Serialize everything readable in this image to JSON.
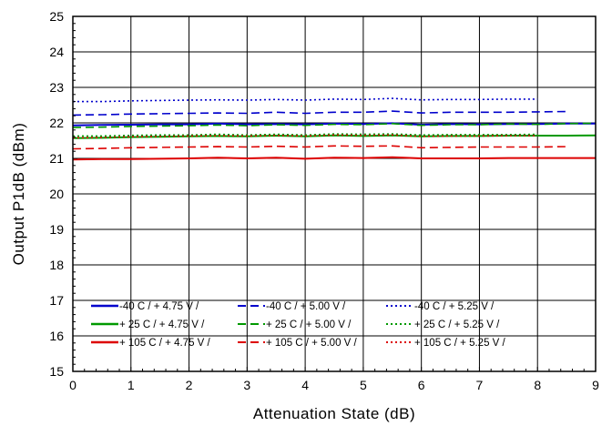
{
  "chart_data": {
    "type": "line",
    "xlabel": "Attenuation State (dB)",
    "ylabel": "Output P1dB (dBm)",
    "xlim": [
      0,
      9
    ],
    "ylim": [
      15,
      25
    ],
    "xticks": [
      0,
      1,
      2,
      3,
      4,
      5,
      6,
      7,
      8,
      9
    ],
    "yticks": [
      15,
      16,
      17,
      18,
      19,
      20,
      21,
      22,
      23,
      24,
      25
    ],
    "grid": true,
    "legend_position": "bottom-left",
    "series": [
      {
        "name": "-40 C /  + 4.75 V /",
        "color": "#0000cc",
        "dash": "solid",
        "x": [
          0,
          0.5,
          1,
          1.5,
          2,
          2.5,
          3,
          3.5,
          4,
          4.5,
          5,
          5.5,
          6,
          6.5,
          7,
          7.5,
          8,
          8.5,
          9
        ],
        "y": [
          21.93,
          21.94,
          21.95,
          21.96,
          21.96,
          21.98,
          21.96,
          21.97,
          21.96,
          21.98,
          21.97,
          21.99,
          21.95,
          21.97,
          21.96,
          21.97,
          21.97,
          21.98,
          21.98
        ]
      },
      {
        "name": "-40 C /  + 5.00 V /",
        "color": "#0000cc",
        "dash": "dashed",
        "x": [
          0,
          0.5,
          1,
          1.5,
          2,
          2.5,
          3,
          3.5,
          4,
          4.5,
          5,
          5.5,
          6,
          6.5,
          7,
          7.5,
          8,
          8.5
        ],
        "y": [
          22.22,
          22.23,
          22.25,
          22.26,
          22.27,
          22.28,
          22.27,
          22.3,
          22.27,
          22.3,
          22.3,
          22.33,
          22.28,
          22.3,
          22.3,
          22.3,
          22.31,
          22.32
        ]
      },
      {
        "name": "-40 C /  + 5.25 V /",
        "color": "#0000cc",
        "dash": "dotted",
        "x": [
          0,
          0.5,
          1,
          1.5,
          2,
          2.5,
          3,
          3.5,
          4,
          4.5,
          5,
          5.5,
          6,
          6.5,
          7,
          7.5,
          8
        ],
        "y": [
          22.6,
          22.6,
          22.62,
          22.63,
          22.64,
          22.65,
          22.64,
          22.66,
          22.64,
          22.67,
          22.66,
          22.69,
          22.65,
          22.66,
          22.66,
          22.67,
          22.67
        ]
      },
      {
        "name": "+ 25 C /  + 4.75 V /",
        "color": "#009900",
        "dash": "solid",
        "x": [
          0,
          0.5,
          1,
          1.5,
          2,
          2.5,
          3,
          3.5,
          4,
          4.5,
          5,
          5.5,
          6,
          6.5,
          7,
          7.5,
          8,
          8.5,
          9
        ],
        "y": [
          21.57,
          21.58,
          21.6,
          21.61,
          21.62,
          21.63,
          21.62,
          21.64,
          21.62,
          21.65,
          21.63,
          21.65,
          21.62,
          21.63,
          21.63,
          21.64,
          21.64,
          21.64,
          21.65
        ]
      },
      {
        "name": "+ 25 C /  + 5.00 V /",
        "color": "#009900",
        "dash": "dashed",
        "x": [
          0,
          0.5,
          1,
          1.5,
          2,
          2.5,
          3,
          3.5,
          4,
          4.5,
          5,
          5.5,
          6,
          6.5,
          7,
          7.5,
          8,
          8.5,
          9
        ],
        "y": [
          21.87,
          21.88,
          21.9,
          21.91,
          21.92,
          21.94,
          21.92,
          21.95,
          21.93,
          21.96,
          21.95,
          21.98,
          21.93,
          21.95,
          21.95,
          21.97,
          21.96,
          21.98,
          21.99
        ]
      },
      {
        "name": "+ 25 C /  + 5.25 V /",
        "color": "#009900",
        "dash": "dotted",
        "x": [
          0,
          0.5,
          1,
          1.5,
          2,
          2.5,
          3,
          3.5,
          4,
          4.5,
          5,
          5.5,
          6,
          6.5,
          7,
          7.5,
          8
        ],
        "y": [
          21.63,
          21.63,
          21.65,
          21.66,
          21.66,
          21.68,
          21.66,
          21.68,
          21.66,
          21.69,
          21.68,
          21.69,
          21.66,
          21.67,
          21.67,
          21.67,
          21.68
        ]
      },
      {
        "name": "+ 105 C /  + 4.75 V /",
        "color": "#dd0000",
        "dash": "solid",
        "x": [
          0,
          0.5,
          1,
          1.5,
          2,
          2.5,
          3,
          3.5,
          4,
          4.5,
          5,
          5.5,
          6,
          6.5,
          7,
          7.5,
          8,
          8.5,
          9
        ],
        "y": [
          20.97,
          20.98,
          20.98,
          20.99,
          21.0,
          21.02,
          21.0,
          21.02,
          20.99,
          21.02,
          21.01,
          21.03,
          21.0,
          21.0,
          21.0,
          21.01,
          21.01,
          21.01,
          21.01
        ]
      },
      {
        "name": "+ 105 C /  + 5.00 V /",
        "color": "#dd0000",
        "dash": "dashed",
        "x": [
          0,
          0.5,
          1,
          1.5,
          2,
          2.5,
          3,
          3.5,
          4,
          4.5,
          5,
          5.5,
          6,
          6.5,
          7,
          7.5,
          8,
          8.5
        ],
        "y": [
          21.27,
          21.28,
          21.3,
          21.31,
          21.32,
          21.33,
          21.32,
          21.34,
          21.32,
          21.35,
          21.34,
          21.35,
          21.3,
          21.31,
          21.32,
          21.32,
          21.32,
          21.33
        ]
      },
      {
        "name": "+ 105 C /  + 5.25 V /",
        "color": "#dd0000",
        "dash": "dotted",
        "x": [
          0,
          0.5,
          1,
          1.5,
          2,
          2.5,
          3,
          3.5,
          4,
          4.5,
          5,
          5.5,
          6,
          6.5,
          7,
          7.5,
          8
        ],
        "y": [
          21.58,
          21.59,
          21.61,
          21.62,
          21.63,
          21.64,
          21.63,
          21.65,
          21.63,
          21.66,
          21.65,
          21.66,
          21.62,
          21.63,
          21.63,
          21.64,
          21.64
        ]
      }
    ]
  }
}
